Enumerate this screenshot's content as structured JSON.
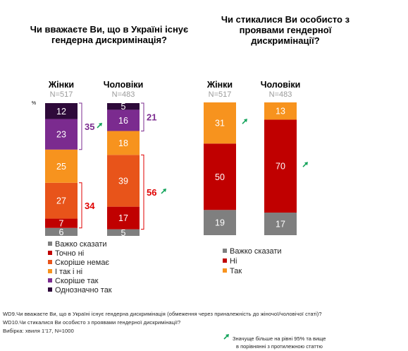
{
  "colors": {
    "important_not": "#7f7f7f",
    "definitely_no": "#c00000",
    "rather_no": "#e8541a",
    "yes_and_no": "#f7931e",
    "rather_yes": "#7b2b8f",
    "definitely_yes": "#2e0a3a",
    "hard_to_say": "#7f7f7f",
    "no": "#c00000",
    "yes": "#f7931e",
    "net_purple": "#7b2b8f",
    "net_red": "#e00000",
    "arrow_green": "#12a35a"
  },
  "chart_data": [
    {
      "type": "bar",
      "stacked": true,
      "title": "Чи вважаєте Ви, що в Україні існує гендерна дискримінація?",
      "unit_label": "%",
      "categories": [
        "Жінки",
        "Чоловіки"
      ],
      "sample_sizes": [
        "N=517",
        "N=483"
      ],
      "series": [
        {
          "name": "Важко сказати",
          "values": [
            6,
            5
          ]
        },
        {
          "name": "Точно ні",
          "values": [
            7,
            17
          ]
        },
        {
          "name": "Скоріше немає",
          "values": [
            27,
            39
          ]
        },
        {
          "name": "І так і ні",
          "values": [
            25,
            18
          ]
        },
        {
          "name": "Скоріше так",
          "values": [
            23,
            16
          ]
        },
        {
          "name": "Однозначно так",
          "values": [
            12,
            5
          ]
        }
      ],
      "net_labels": [
        {
          "category": "Жінки",
          "text": "35",
          "group": "yes",
          "significant": true
        },
        {
          "category": "Жінки",
          "text": "34",
          "group": "no",
          "significant": false
        },
        {
          "category": "Чоловіки",
          "text": "21",
          "group": "yes",
          "significant": false
        },
        {
          "category": "Чоловіки",
          "text": "56",
          "group": "no",
          "significant": true
        }
      ],
      "legend": [
        "Важко сказати",
        "Точно ні",
        "Скоріше немає",
        "І так і ні",
        "Скоріше так",
        "Однозначно так"
      ]
    },
    {
      "type": "bar",
      "stacked": true,
      "title": "Чи стикалися Ви особисто з проявами гендерної дискримінації?",
      "categories": [
        "Жінки",
        "Чоловіки"
      ],
      "sample_sizes": [
        "N=517",
        "N=483"
      ],
      "series": [
        {
          "name": "Важко сказати",
          "values": [
            19,
            17
          ]
        },
        {
          "name": "Ні",
          "values": [
            50,
            70
          ]
        },
        {
          "name": "Так",
          "values": [
            31,
            13
          ]
        }
      ],
      "significance": [
        {
          "category": "Жінки",
          "series": "Так"
        },
        {
          "category": "Чоловіки",
          "series": "Ні"
        }
      ],
      "legend": [
        "Важко сказати",
        "Ні",
        "Так"
      ]
    }
  ],
  "footnotes": {
    "q1": "WD9.Чи вважаєте Ви, що в Україні існує гендерна дискримінація (обмеження через приналежність до жіночої/чоловічої статі)?",
    "q2": "WD10.Чи стикалися Ви особисто з проявами гендерної дискримінації?",
    "sample": "Вибірка: хвиля 1'17, N=1000",
    "significance_line1": "Значуще більше на рівні 95% та вище",
    "significance_line2": "в порівнянні з протилежною статтю"
  }
}
